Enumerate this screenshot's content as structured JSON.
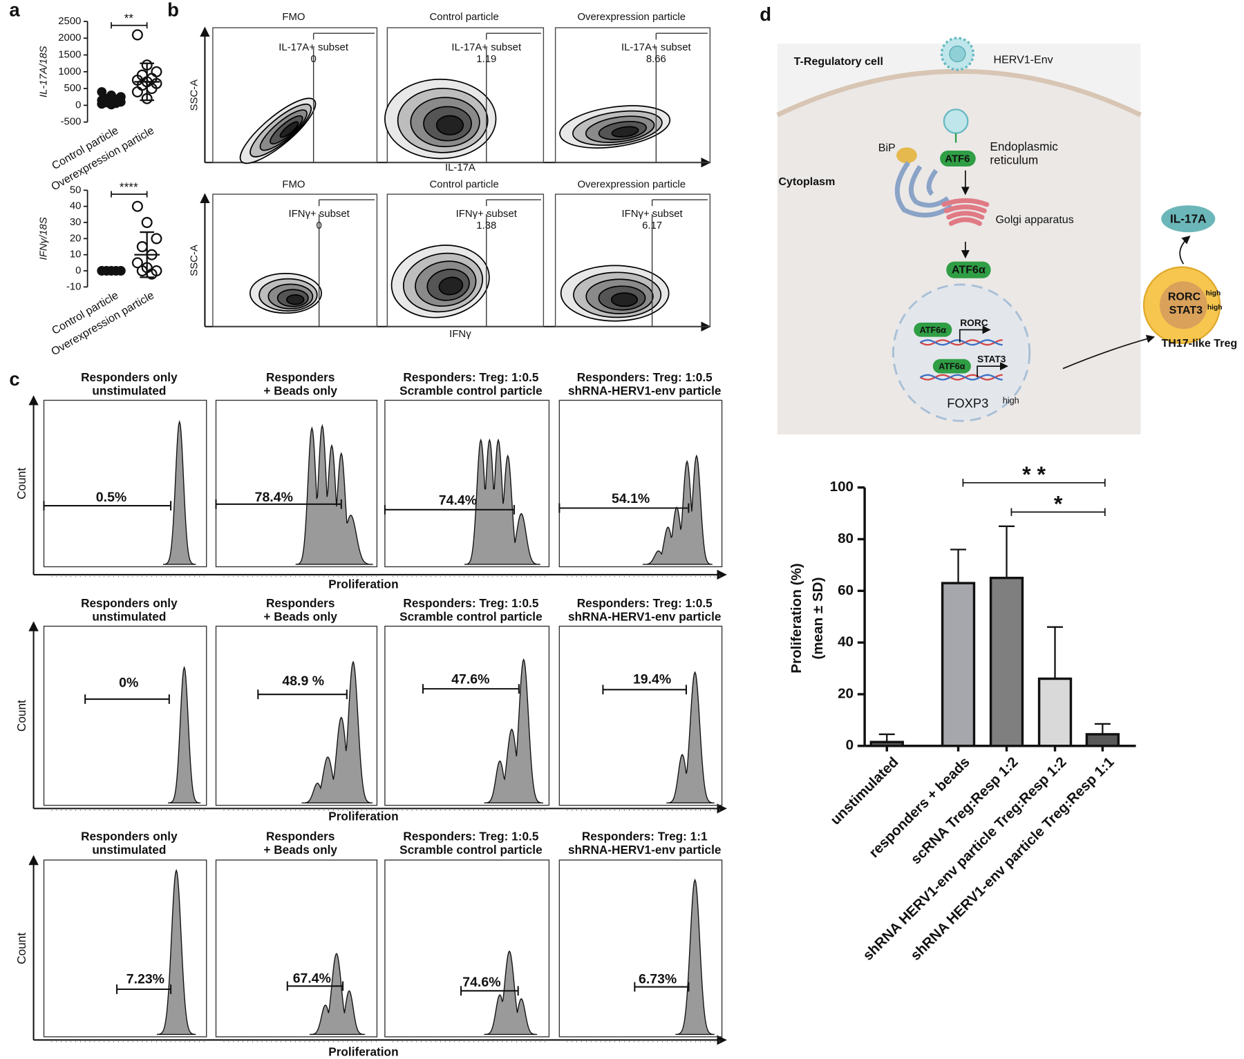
{
  "panel_labels": [
    "a",
    "b",
    "c",
    "d"
  ],
  "chart_data": [
    {
      "type": "dot",
      "y_label": "IL-17A/18S",
      "categories": [
        "Control particle",
        "Overexpression particle"
      ],
      "groups": [
        [
          400,
          300,
          250,
          200,
          180,
          150,
          120,
          100,
          80,
          60,
          40,
          20,
          250,
          150,
          100
        ],
        [
          2100,
          1200,
          1000,
          900,
          800,
          750,
          700,
          650,
          600,
          500,
          400,
          200
        ]
      ],
      "means": [
        150,
        700
      ],
      "sd": [
        120,
        550
      ],
      "ylim": [
        -500,
        2500
      ],
      "yticks": [
        -500,
        0,
        500,
        1000,
        1500,
        2000,
        2500
      ],
      "significance": "**"
    },
    {
      "type": "dot",
      "y_label": "IFNγ/18S",
      "categories": [
        "Control particle",
        "Overexpression particle"
      ],
      "groups": [
        [
          0,
          0,
          0,
          0,
          0,
          0,
          0,
          0,
          0,
          0
        ],
        [
          40,
          30,
          20,
          15,
          10,
          5,
          2,
          0,
          0,
          -2
        ]
      ],
      "means": [
        0,
        10
      ],
      "sd": [
        0,
        14
      ],
      "ylim": [
        -10,
        50
      ],
      "yticks": [
        -10,
        0,
        10,
        20,
        30,
        40,
        50
      ],
      "significance": "****"
    },
    {
      "type": "bar",
      "y_label": [
        "Proliferation (%)",
        "(mean ± SD)"
      ],
      "categories": [
        "unstimulated",
        "responders + beads",
        "scRNA Treg:Resp 1:2",
        "shRNA HERV1-env particle Treg:Resp 1:2",
        "shRNA HERV1-env particle Treg:Resp 1:1"
      ],
      "values": [
        1.5,
        63,
        65,
        26,
        4.5
      ],
      "errors": [
        3,
        13,
        20,
        20,
        4
      ],
      "colors": [
        "#595959",
        "#a6a6ad",
        "#7f7f7f",
        "#d9d9d9",
        "#595959"
      ],
      "ylim": [
        0,
        100
      ],
      "yticks": [
        0,
        20,
        40,
        60,
        80,
        100
      ],
      "comparisons": [
        {
          "label": "* *",
          "between": [
            1,
            4
          ]
        },
        {
          "label": "*",
          "between": [
            2,
            4
          ]
        }
      ]
    }
  ],
  "flow": {
    "y_label": "SSC-A",
    "rows": [
      {
        "x_label": "IL-17A",
        "plots": [
          {
            "title": "FMO",
            "gate": "IL-17A+ subset",
            "value": 0
          },
          {
            "title": "Control particle",
            "gate": "IL-17A+ subset",
            "value": 1.19
          },
          {
            "title": "Overexpression  particle",
            "gate": "IL-17A+ subset",
            "value": 8.66
          }
        ]
      },
      {
        "x_label": "IFNγ",
        "plots": [
          {
            "title": "FMO",
            "gate": "IFNγ+ subset",
            "value": 0
          },
          {
            "title": "Control particle",
            "gate": "IFNγ+ subset",
            "value": 1.38
          },
          {
            "title": "Overexpression  particle",
            "gate": "IFNγ+ subset",
            "value": 6.17
          }
        ]
      }
    ]
  },
  "proliferation": {
    "y_label": "Count",
    "x_label": "Proliferation",
    "rows": [
      {
        "plots": [
          {
            "title": [
              "Responders only",
              "unstimulated"
            ],
            "label": "0.5%"
          },
          {
            "title": [
              "Responders",
              "+ Beads only"
            ],
            "label": "78.4%"
          },
          {
            "title": [
              "Responders: Treg: 1:0.5",
              "Scramble control particle"
            ],
            "label": "74.4%"
          },
          {
            "title": [
              "Responders: Treg:  1:0.5",
              "shRNA-HERV1-env particle"
            ],
            "label": "54.1%"
          }
        ]
      },
      {
        "plots": [
          {
            "title": [
              "Responders only",
              "unstimulated"
            ],
            "label": "0%"
          },
          {
            "title": [
              "Responders",
              "+ Beads only"
            ],
            "label": "48.9 %"
          },
          {
            "title": [
              "Responders: Treg: 1:0.5",
              "Scramble control particle"
            ],
            "label": "47.6%"
          },
          {
            "title": [
              "Responders: Treg:  1:0.5",
              "shRNA-HERV1-env particle"
            ],
            "label": "19.4%"
          }
        ]
      },
      {
        "plots": [
          {
            "title": [
              "Responders only",
              "unstimulated"
            ],
            "label": "7.23%"
          },
          {
            "title": [
              "Responders",
              "+ Beads only"
            ],
            "label": "67.4%"
          },
          {
            "title": [
              "Responders: Treg: 1:0.5",
              "Scramble control particle"
            ],
            "label": "74.6%"
          },
          {
            "title": [
              "Responders: Treg:  1:1",
              "shRNA-HERV1-env particle"
            ],
            "label": "6.73%"
          }
        ]
      }
    ]
  },
  "diagram": {
    "cell": "T-Regulatory cell",
    "virus": "HERV1-Env",
    "bip": "BiP",
    "er": [
      "Endoplasmic",
      "reticulum"
    ],
    "atf6": "ATF6",
    "cytoplasm": "Cytoplasm",
    "golgi": "Golgi apparatus",
    "atf6a": "ATF6α",
    "genes": [
      "RORC",
      "STAT3"
    ],
    "foxp3": "FOXP3",
    "high": "high",
    "cytokine": "IL-17A",
    "th17": "TH17-like Treg"
  }
}
